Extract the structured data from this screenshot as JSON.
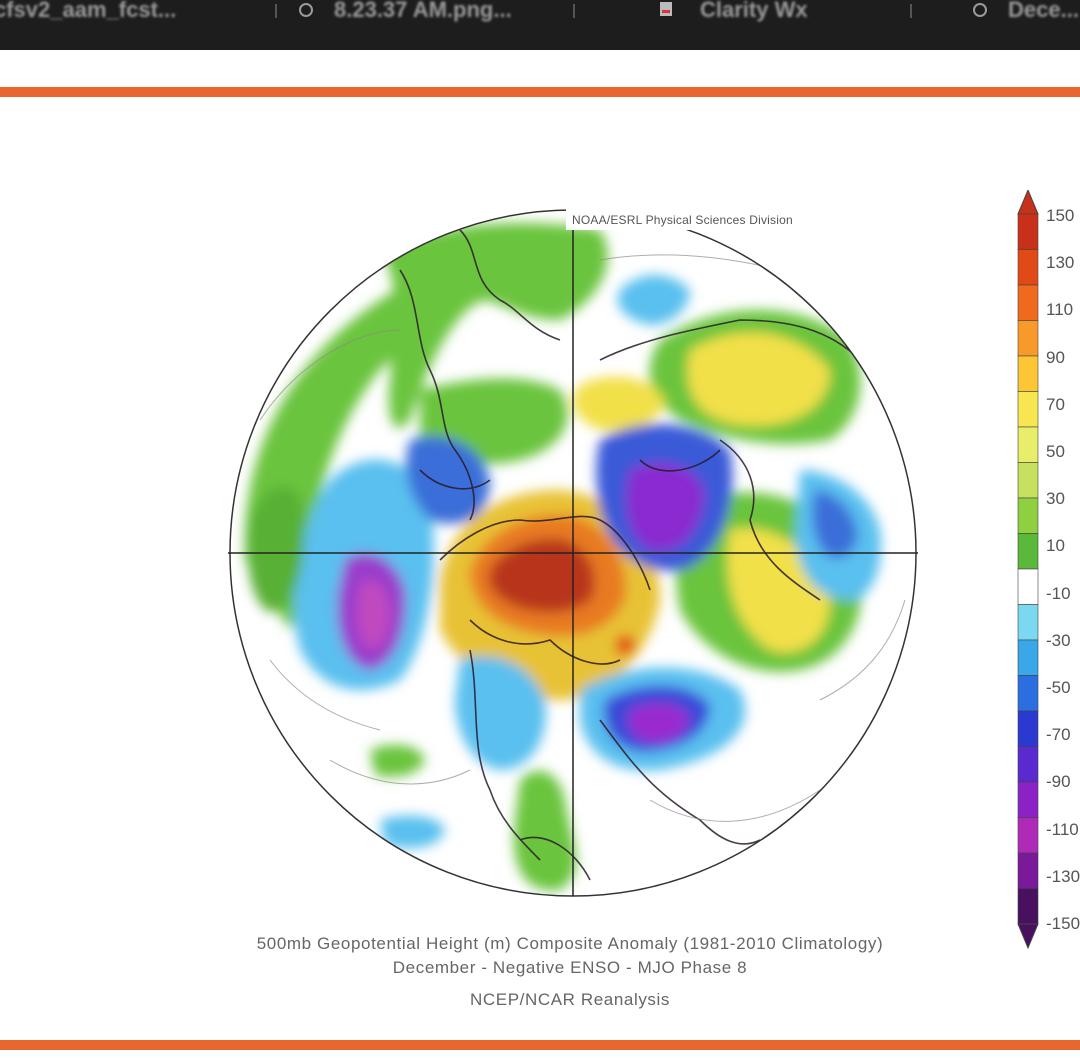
{
  "browser": {
    "tabs": [
      {
        "label": "cfsv2_aam_fcst..."
      },
      {
        "label": "8.23.37 AM.png..."
      },
      {
        "label": "Clarity Wx"
      },
      {
        "label": "Dece..."
      }
    ]
  },
  "figure": {
    "credit": "NOAA/ESRL Physical Sciences Division",
    "caption_line1": "500mb Geopotential Height (m) Composite Anomaly (1981-2010 Climatology)",
    "caption_line2": "December - Negative ENSO - MJO Phase 8",
    "caption_line3": "NCEP/NCAR Reanalysis",
    "colorbar": {
      "labels": [
        "150",
        "130",
        "110",
        "90",
        "70",
        "50",
        "30",
        "10",
        "-10",
        "-30",
        "-50",
        "-70",
        "-90",
        "-110",
        "-130",
        "-150"
      ],
      "colors": [
        "#c8301a",
        "#e04a18",
        "#f06a1e",
        "#f89a2a",
        "#fcc634",
        "#f8e650",
        "#e8ee6a",
        "#c8e060",
        "#8ed040",
        "#5ab83a",
        "#ffffff",
        "#7ad8f0",
        "#3aa8e8",
        "#2a6ee0",
        "#2a3ad0",
        "#5a2ad0",
        "#8a22c8",
        "#b02ab8",
        "#7a1a9a",
        "#4a1060"
      ]
    }
  }
}
